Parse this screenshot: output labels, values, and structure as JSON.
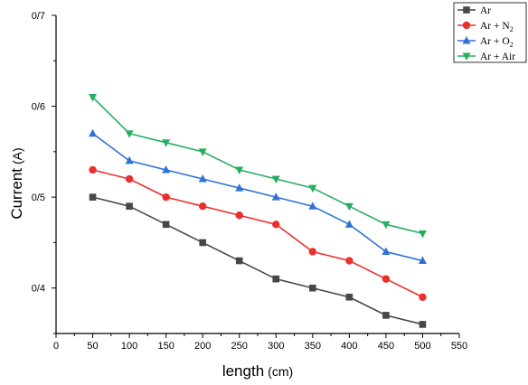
{
  "chart_data": {
    "type": "line",
    "title": "",
    "xlabel_main": "length",
    "xlabel_unit": "(cm)",
    "ylabel_main": "Current",
    "ylabel_unit": "(A)",
    "xlim": [
      0,
      550
    ],
    "ylim": [
      0.35,
      0.7
    ],
    "x_ticks": [
      0,
      50,
      100,
      150,
      200,
      250,
      300,
      350,
      400,
      450,
      500,
      550
    ],
    "x_tick_labels": [
      "0",
      "50",
      "100",
      "150",
      "200",
      "250",
      "300",
      "350",
      "400",
      "450",
      "500",
      "550"
    ],
    "y_ticks": [
      0.4,
      0.5,
      0.6,
      0.7
    ],
    "y_tick_labels": [
      "0/4",
      "0/5",
      "0/6",
      "0/7"
    ],
    "grid": false,
    "legend_position": "outside-top-right",
    "x": [
      50,
      100,
      150,
      200,
      250,
      300,
      350,
      400,
      450,
      500
    ],
    "series": [
      {
        "name_base": "Ar",
        "name_sub": "",
        "color": "#474747",
        "marker": "square",
        "values": [
          0.5,
          0.49,
          0.47,
          0.45,
          0.43,
          0.41,
          0.4,
          0.39,
          0.37,
          0.36
        ]
      },
      {
        "name_base": "Ar + N",
        "name_sub": "2",
        "color": "#e8312f",
        "marker": "circle",
        "values": [
          0.53,
          0.52,
          0.5,
          0.49,
          0.48,
          0.47,
          0.44,
          0.43,
          0.41,
          0.39
        ]
      },
      {
        "name_base": "Ar + O",
        "name_sub": "2",
        "color": "#2f72d6",
        "marker": "triangle-up",
        "values": [
          0.57,
          0.54,
          0.53,
          0.52,
          0.51,
          0.5,
          0.49,
          0.47,
          0.44,
          0.43
        ]
      },
      {
        "name_base": "Ar + Air",
        "name_sub": "",
        "color": "#27ae60",
        "marker": "triangle-down",
        "values": [
          0.61,
          0.57,
          0.56,
          0.55,
          0.53,
          0.52,
          0.51,
          0.49,
          0.47,
          0.46
        ]
      }
    ]
  }
}
